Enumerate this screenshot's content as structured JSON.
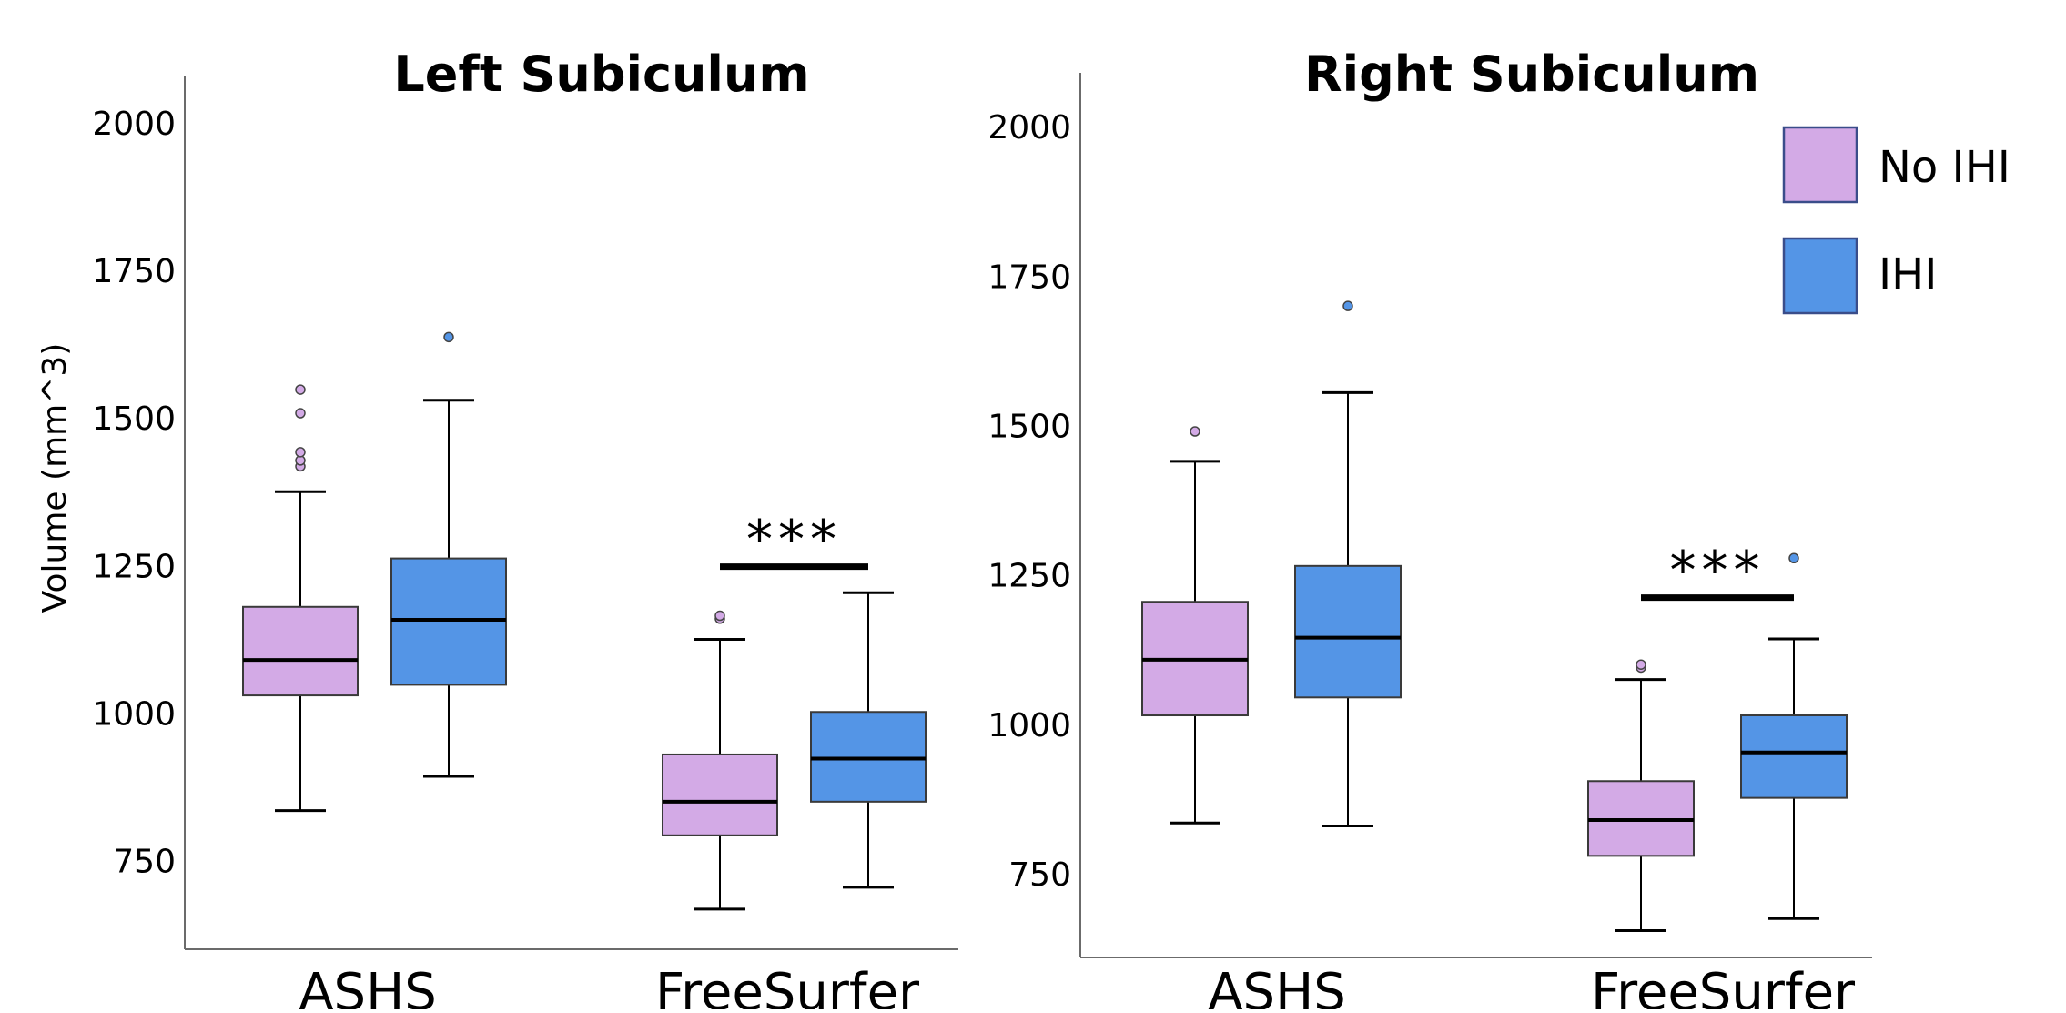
{
  "chart_data": [
    {
      "type": "box",
      "title": "Left Subiculum",
      "ylabel": "Volume (mm^3)",
      "xlabel": "",
      "ylim": [
        600,
        2080
      ],
      "yticks": [
        750,
        1000,
        1250,
        1500,
        1750,
        2000
      ],
      "categories": [
        "ASHS",
        "FreeSurfer"
      ],
      "series": [
        {
          "name": "No IHI",
          "color": "#d3aae6",
          "boxes": [
            {
              "min": 835,
              "q1": 1030,
              "median": 1090,
              "q3": 1180,
              "max": 1375,
              "outliers": [
                1418,
                1428,
                1442,
                1508,
                1548
              ]
            },
            {
              "min": 668,
              "q1": 793,
              "median": 850,
              "q3": 930,
              "max": 1125,
              "outliers": [
                1160,
                1165
              ]
            }
          ]
        },
        {
          "name": "IHI",
          "color": "#5495e6",
          "boxes": [
            {
              "min": 893,
              "q1": 1048,
              "median": 1158,
              "q3": 1262,
              "max": 1530,
              "outliers": [
                1637
              ]
            },
            {
              "min": 705,
              "q1": 850,
              "median": 923,
              "q3": 1002,
              "max": 1204,
              "outliers": []
            }
          ]
        }
      ],
      "significance": {
        "category": "FreeSurfer",
        "label": "***",
        "value": 1248
      }
    },
    {
      "type": "box",
      "title": "Right Subiculum",
      "ylabel": "",
      "xlabel": "",
      "ylim": [
        610,
        2090
      ],
      "yticks": [
        750,
        1000,
        1250,
        1500,
        1750,
        2000
      ],
      "categories": [
        "ASHS",
        "FreeSurfer"
      ],
      "series": [
        {
          "name": "No IHI",
          "color": "#d3aae6",
          "boxes": [
            {
              "min": 835,
              "q1": 1015,
              "median": 1108,
              "q3": 1205,
              "max": 1440,
              "outliers": [
                1490
              ]
            },
            {
              "min": 655,
              "q1": 780,
              "median": 840,
              "q3": 905,
              "max": 1075,
              "outliers": [
                1095,
                1100
              ]
            }
          ]
        },
        {
          "name": "IHI",
          "color": "#5495e6",
          "boxes": [
            {
              "min": 830,
              "q1": 1045,
              "median": 1145,
              "q3": 1265,
              "max": 1555,
              "outliers": [
                1700
              ]
            },
            {
              "min": 675,
              "q1": 877,
              "median": 953,
              "q3": 1015,
              "max": 1143,
              "outliers": [
                1278
              ]
            }
          ]
        }
      ],
      "significance": {
        "category": "FreeSurfer",
        "label": "***",
        "value": 1212
      }
    }
  ],
  "legend": {
    "position": "top-right",
    "items": [
      {
        "label": "No IHI",
        "color": "#d3aae6"
      },
      {
        "label": "IHI",
        "color": "#5495e6"
      }
    ]
  }
}
